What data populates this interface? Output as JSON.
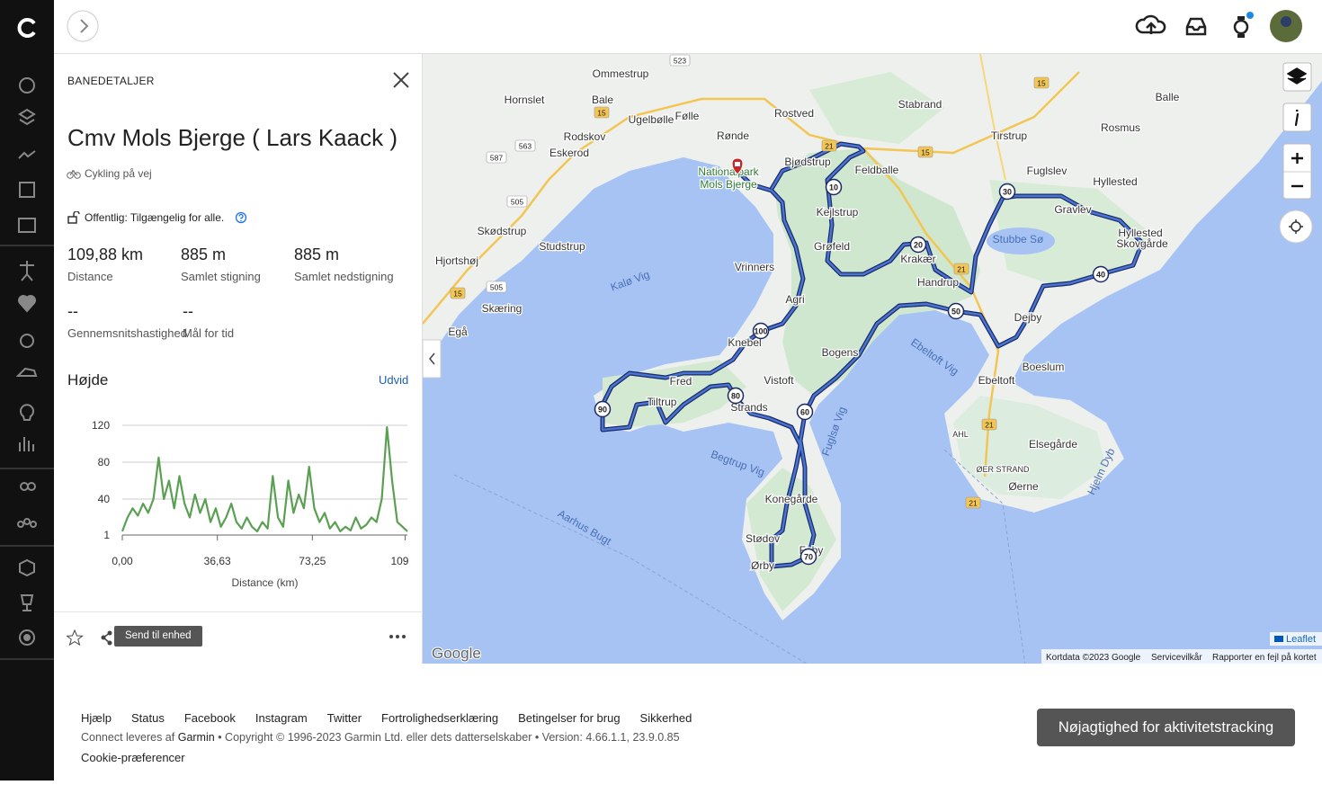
{
  "panel": {
    "heading": "BANEDETALJER",
    "title": "Cmv Mols Bjerge ( Lars Kaack )",
    "activity_type": "Cykling på vej",
    "privacy": "Offentlig: Tilgængelig for alle.",
    "stats": [
      {
        "value": "109,88 km",
        "label": "Distance"
      },
      {
        "value": "885 m",
        "label": "Samlet stigning"
      },
      {
        "value": "885 m",
        "label": "Samlet nedstigning"
      },
      {
        "value": "--",
        "label": "Gennemsnitshastighed"
      },
      {
        "value": "--",
        "label": "Mål for tid"
      }
    ],
    "elevation_heading": "Højde",
    "expand": "Udvid",
    "send_button": "Send til enhed"
  },
  "chart_data": {
    "type": "line",
    "color": "#5aa052",
    "x": [
      0,
      2,
      4,
      6,
      8,
      10,
      12,
      14,
      16,
      18,
      20,
      22,
      24,
      26,
      28,
      30,
      32,
      34,
      36,
      38,
      40,
      42,
      44,
      46,
      48,
      50,
      52,
      54,
      56,
      58,
      60,
      62,
      64,
      66,
      68,
      70,
      72,
      74,
      76,
      78,
      80,
      82,
      84,
      86,
      88,
      90,
      92,
      94,
      96,
      98,
      100,
      102,
      104,
      106,
      108,
      109.88
    ],
    "values": [
      5,
      20,
      30,
      22,
      35,
      25,
      40,
      85,
      40,
      60,
      30,
      65,
      35,
      20,
      45,
      25,
      40,
      15,
      30,
      10,
      20,
      35,
      15,
      8,
      20,
      10,
      5,
      15,
      8,
      65,
      20,
      10,
      60,
      25,
      45,
      30,
      75,
      30,
      15,
      25,
      8,
      15,
      5,
      10,
      6,
      20,
      8,
      12,
      20,
      15,
      40,
      118,
      60,
      15,
      10,
      5
    ],
    "xlim": [
      0,
      109.88
    ],
    "ylim": [
      1,
      120
    ],
    "xticks": [
      {
        "value": 0,
        "label": "0,00"
      },
      {
        "value": 36.63,
        "label": "36,63"
      },
      {
        "value": 73.25,
        "label": "73,25"
      },
      109
    ],
    "yticks": [
      1,
      40,
      80,
      120
    ],
    "x_label": "Distance (km)",
    "grid": true
  },
  "map": {
    "places": [
      "Ommestrup",
      "Hornslet",
      "Bale",
      "Ugelbølle",
      "Følle",
      "Rostved",
      "Stabrand",
      "Balle",
      "Rosmus",
      "Rodskov",
      "Rønde",
      "Tirstrup",
      "Eskerod",
      "Bjødstrup",
      "Feldballe",
      "Nationalpark",
      "Mols Bjerge",
      "Fuglslev",
      "Hyllested",
      "Kejlstrup",
      "Skødstrup",
      "Gravlev",
      "Hyllested",
      "Skovgårde",
      "Studstrup",
      "Grøfeld",
      "Stubbe Sø",
      "Hjortshøj",
      "Krakær",
      "Vrinners",
      "Handrup",
      "Kalø Vig",
      "Skæring",
      "Agri",
      "Dejby",
      "Egå",
      "Knebel",
      "Bogens",
      "Ebeltoft Vig",
      "Boeslum",
      "Vistoft",
      "Fred",
      "Ebeltoft",
      "Tiltrup",
      "Strands",
      "Fuglsø Vig",
      "AHL",
      "Elsegårde",
      "Begtrup Vig",
      "ØER STRAND",
      "Hjelm Dyb",
      "Øerne",
      "Aarhus Bugt",
      "Konegårde",
      "Stødov",
      "Feby",
      "Ørby"
    ],
    "roads": [
      "523",
      "15",
      "563",
      "587",
      "505",
      "505",
      "15",
      "21",
      "15",
      "15",
      "21",
      "21",
      "21"
    ],
    "distance_markers": [
      "10",
      "20",
      "30",
      "40",
      "50",
      "60",
      "70",
      "80",
      "90",
      "100"
    ],
    "logo": "Google",
    "leaflet": "Leaflet",
    "attribution": [
      "Kortdata ©2023 Google",
      "Servicevilkår",
      "Rapporter en fejl på kortet"
    ]
  },
  "footer": {
    "links": [
      "Hjælp",
      "Status",
      "Facebook",
      "Instagram",
      "Twitter",
      "Fortrolighedserklæring",
      "Betingelser for brug",
      "Sikkerhed"
    ],
    "credits_before": "Connect leveres af",
    "brand": "Garmin",
    "credits_after": "• Copyright © 1996-2023 Garmin Ltd. eller dets datterselskaber • Version: 4.66.1.1, 23.9.0.85",
    "cookies": "Cookie-præferencer",
    "accuracy_button": "Nøjagtighed for aktivitetstracking"
  }
}
